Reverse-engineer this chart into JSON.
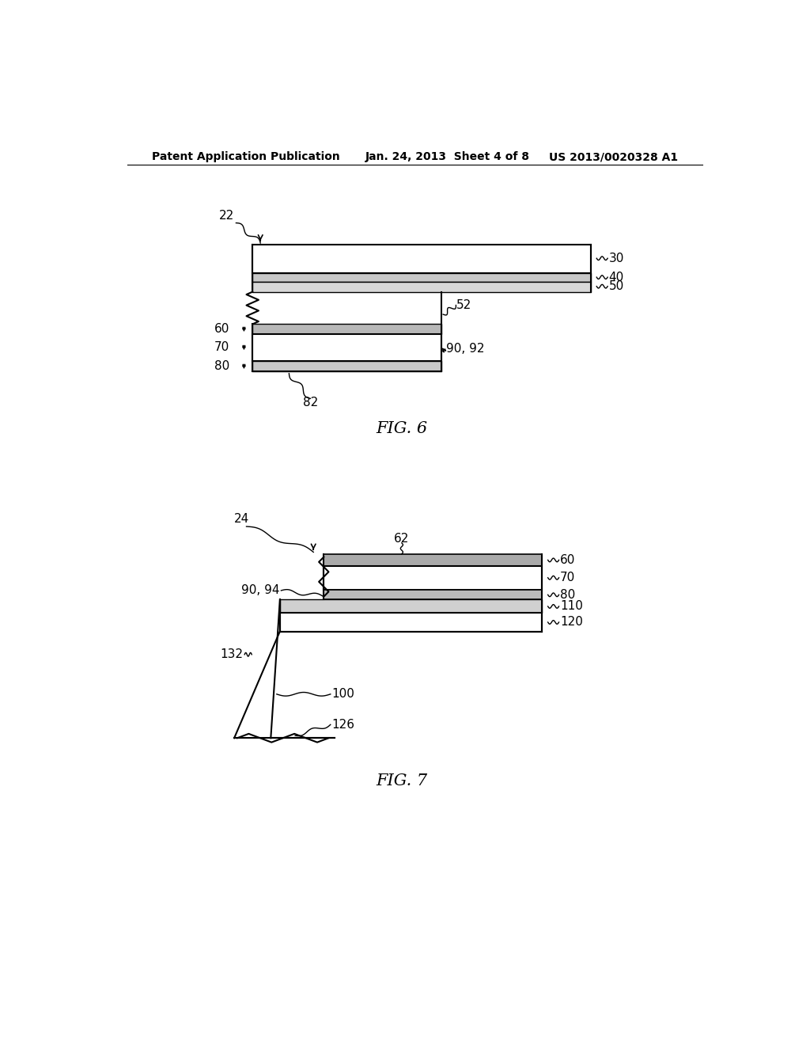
{
  "bg_color": "#ffffff",
  "header_left": "Patent Application Publication",
  "header_center": "Jan. 24, 2013  Sheet 4 of 8",
  "header_right": "US 2013/0020328 A1",
  "fig6_label": "FIG. 6",
  "fig7_label": "FIG. 7",
  "label_fs": 11,
  "header_fs": 10
}
